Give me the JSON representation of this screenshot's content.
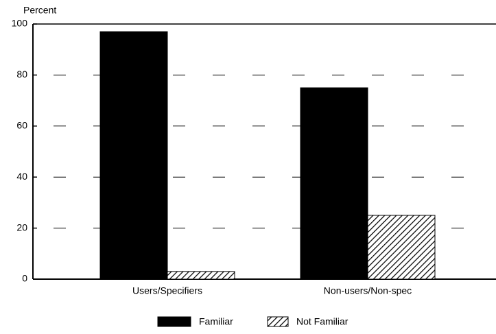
{
  "chart_data": {
    "type": "bar",
    "ylabel": "Percent",
    "categories": [
      "Users/Specifiers",
      "Non-users/Non-spec"
    ],
    "series": [
      {
        "name": "Familiar",
        "color": "#000000",
        "fill": "solid",
        "values": [
          97,
          75
        ]
      },
      {
        "name": "Not Familiar",
        "color": "#000000",
        "fill": "hatch",
        "values": [
          3,
          25
        ]
      }
    ],
    "ylim": [
      0,
      100
    ],
    "yticks": [
      0,
      20,
      40,
      60,
      80,
      100
    ],
    "grid": true,
    "legend": "bottom"
  }
}
